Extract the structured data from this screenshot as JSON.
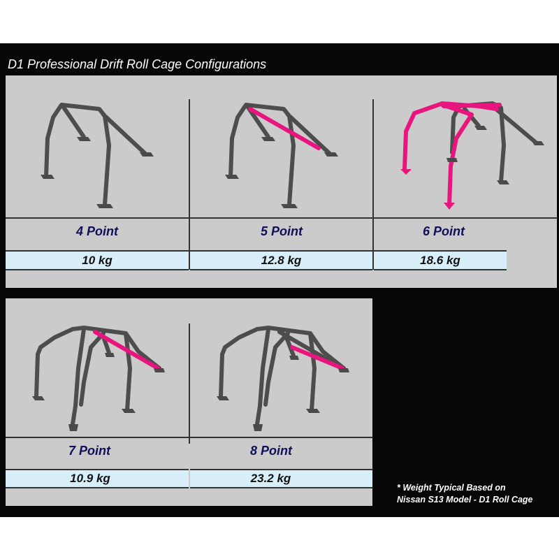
{
  "title": "D1 Professional Drift Roll Cage Configurations",
  "colors": {
    "highlight": "#e8157f",
    "tube": "#4d4d4d",
    "label": "#10105a",
    "weight_row": "#d8eef8"
  },
  "configs": [
    {
      "label": "4 Point",
      "weight": "10 kg"
    },
    {
      "label": "5 Point",
      "weight": "12.8 kg"
    },
    {
      "label": "6 Point",
      "weight": "18.6 kg"
    },
    {
      "label": "7 Point",
      "weight": "10.9 kg"
    },
    {
      "label": "8 Point",
      "weight": "23.2 kg"
    }
  ],
  "footnote": [
    "* Weight Typical Based on",
    "Nissan S13 Model - D1 Roll Cage"
  ]
}
